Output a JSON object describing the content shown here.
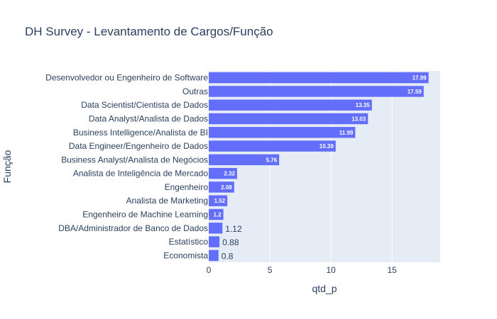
{
  "chart_data": {
    "type": "bar",
    "orientation": "horizontal",
    "title": "DH Survey - Levantamento de Cargos/Função",
    "xlabel": "qtd_p",
    "ylabel": "Função",
    "categories": [
      "Desenvolvedor ou Engenheiro de Software",
      "Outras",
      "Data Scientist/Cientista de Dados",
      "Data Analyst/Analista de Dados",
      "Business Intelligence/Analista de BI",
      "Data Engineer/Engenheiro de Dados",
      "Business Analyst/Analista de Negócios",
      "Analista de Inteligência de Mercado",
      "Engenheiro",
      "Analista de Marketing",
      "Engenheiro de Machine Learning",
      "DBA/Administrador de Banco de Dados",
      "Estatístico",
      "Economista"
    ],
    "values": [
      17.99,
      17.59,
      13.35,
      13.03,
      11.99,
      10.39,
      5.76,
      2.32,
      2.08,
      1.52,
      1.2,
      1.12,
      0.88,
      0.8
    ],
    "xlim": [
      0,
      18.94
    ],
    "xticks": [
      0,
      5,
      10,
      15
    ],
    "grid": true,
    "bar_color": "#636efa",
    "plot_bg": "#e5ecf6"
  }
}
